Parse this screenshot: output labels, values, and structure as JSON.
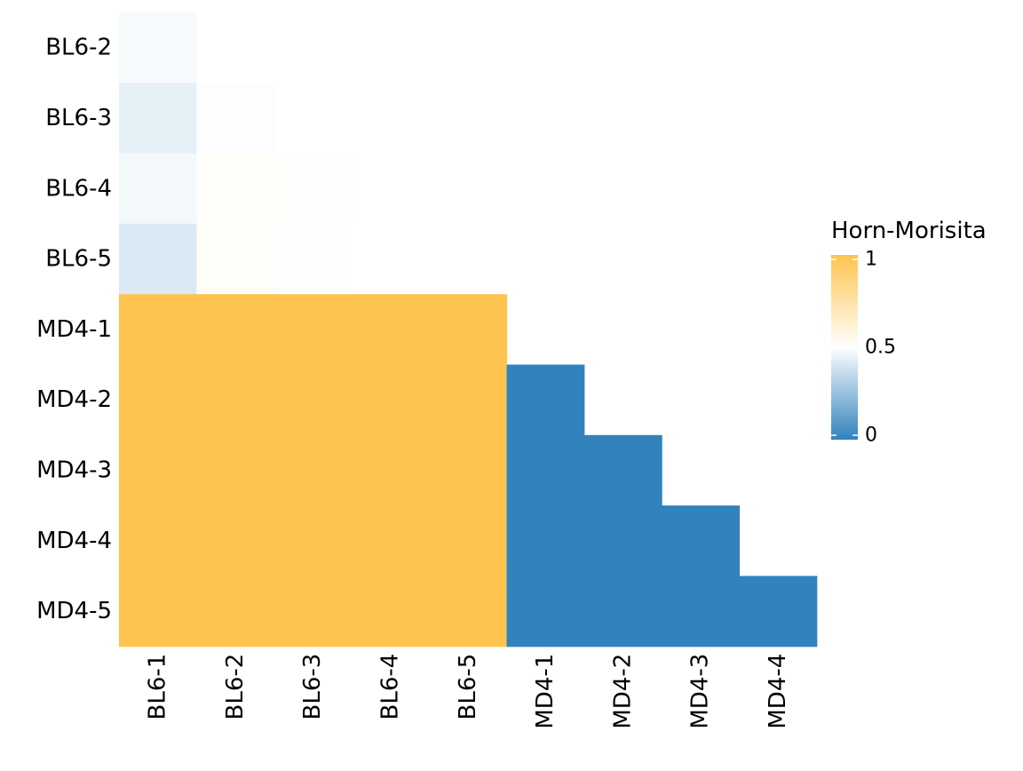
{
  "chart_data": {
    "type": "heatmap",
    "title": "",
    "xlabel": "",
    "ylabel": "",
    "x_categories": [
      "BL6-1",
      "BL6-2",
      "BL6-3",
      "BL6-4",
      "BL6-5",
      "MD4-1",
      "MD4-2",
      "MD4-3",
      "MD4-4"
    ],
    "y_categories": [
      "BL6-2",
      "BL6-3",
      "BL6-4",
      "BL6-5",
      "MD4-1",
      "MD4-2",
      "MD4-3",
      "MD4-4",
      "MD4-5"
    ],
    "values": [
      [
        0.48,
        null,
        null,
        null,
        null,
        null,
        null,
        null,
        null
      ],
      [
        0.44,
        0.49,
        null,
        null,
        null,
        null,
        null,
        null,
        null
      ],
      [
        0.47,
        0.51,
        0.505,
        null,
        null,
        null,
        null,
        null,
        null
      ],
      [
        0.41,
        0.52,
        0.49,
        null,
        null,
        null,
        null,
        null,
        null
      ],
      [
        1,
        1,
        1,
        1,
        1,
        null,
        null,
        null,
        null
      ],
      [
        1,
        1,
        1,
        1,
        1,
        0,
        null,
        null,
        null
      ],
      [
        1,
        1,
        1,
        1,
        1,
        0,
        0,
        null,
        null
      ],
      [
        1,
        1,
        1,
        1,
        1,
        0,
        0,
        0,
        null
      ],
      [
        1,
        1,
        1,
        1,
        1,
        0,
        0,
        0,
        0
      ]
    ],
    "color_scale": {
      "low": "#3182bd",
      "mid": "#ffffff",
      "high": "#fec44f",
      "midpoint": 0.5,
      "limits": [
        0,
        1
      ]
    },
    "legend": {
      "title": "Horn-Morisita",
      "breaks": [
        0,
        0.5,
        1
      ],
      "labels": [
        "0",
        "0.5",
        "1"
      ],
      "position": "right"
    },
    "grid": false
  }
}
